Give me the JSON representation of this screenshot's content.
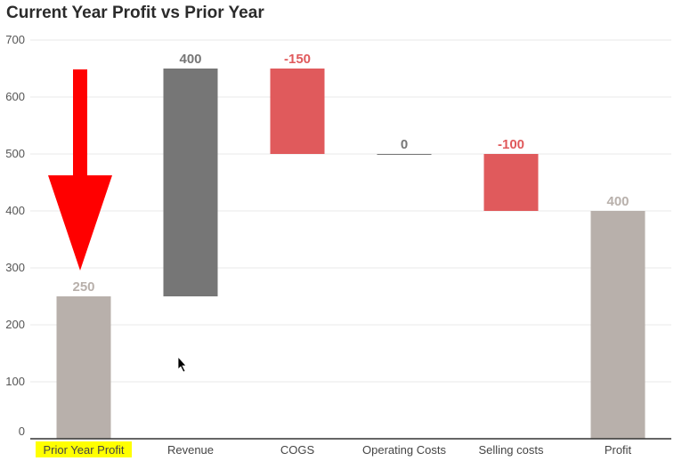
{
  "chart_data": {
    "type": "bar",
    "subtype": "waterfall",
    "title": "Current Year Profit vs Prior Year",
    "xlabel": "",
    "ylabel": "",
    "ylim": [
      0,
      700
    ],
    "yticks": [
      0,
      100,
      200,
      300,
      400,
      500,
      600,
      700
    ],
    "grid": true,
    "categories": [
      "Prior Year Profit",
      "Revenue",
      "COGS",
      "Operating Costs",
      "Selling costs",
      "Profit"
    ],
    "values": [
      250,
      400,
      -150,
      0,
      -100,
      400
    ],
    "value_labels": [
      "250",
      "400",
      "-150",
      "0",
      "-100",
      "400"
    ],
    "bar_kinds": [
      "total",
      "increase",
      "decrease",
      "change",
      "decrease",
      "total"
    ],
    "highlighted_category": "Prior Year Profit",
    "annotation": "red-down-arrow",
    "colors": {
      "total": "#b8b0ab",
      "increase": "#767676",
      "decrease": "#e05a5c",
      "neutral": "#767676",
      "total_label": "#b8b0ab",
      "increase_label": "#767676",
      "decrease_label": "#e05a5c",
      "neutral_label": "#767676",
      "highlight": "#ffff00",
      "arrow": "#ff0000",
      "axis": "#333333",
      "grid": "#e8e8e8"
    }
  }
}
